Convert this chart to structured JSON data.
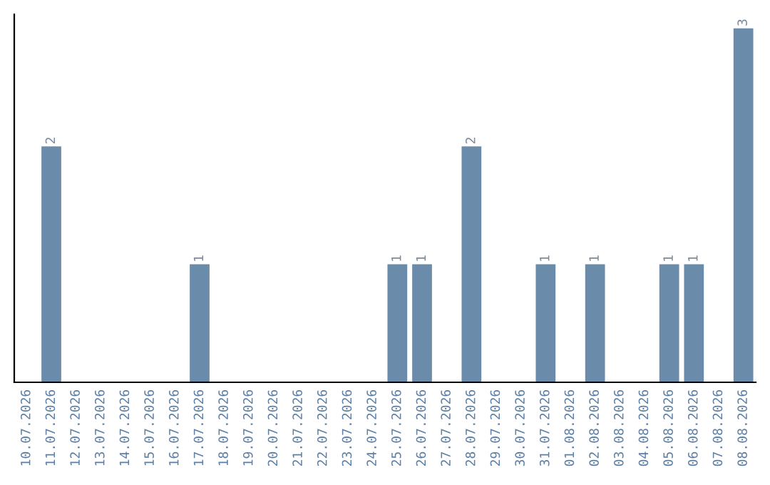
{
  "chart_data": {
    "type": "bar",
    "categories": [
      "10.07.2026",
      "11.07.2026",
      "12.07.2026",
      "13.07.2026",
      "14.07.2026",
      "15.07.2026",
      "16.07.2026",
      "17.07.2026",
      "18.07.2026",
      "19.07.2026",
      "20.07.2026",
      "21.07.2026",
      "22.07.2026",
      "23.07.2026",
      "24.07.2026",
      "25.07.2026",
      "26.07.2026",
      "27.07.2026",
      "28.07.2026",
      "29.07.2026",
      "30.07.2026",
      "31.07.2026",
      "01.08.2026",
      "02.08.2026",
      "03.08.2026",
      "04.08.2026",
      "05.08.2026",
      "06.08.2026",
      "07.08.2026",
      "08.08.2026"
    ],
    "values": [
      0,
      2,
      0,
      0,
      0,
      0,
      0,
      1,
      0,
      0,
      0,
      0,
      0,
      0,
      0,
      1,
      1,
      0,
      2,
      0,
      0,
      1,
      0,
      1,
      0,
      0,
      1,
      1,
      0,
      3
    ],
    "value_labels": [
      null,
      "2",
      null,
      null,
      null,
      null,
      null,
      "1",
      null,
      null,
      null,
      null,
      null,
      null,
      null,
      "1",
      "1",
      null,
      "2",
      null,
      null,
      "1",
      null,
      "1",
      null,
      null,
      "1",
      "1",
      null,
      "3"
    ],
    "color": "#6a8caa",
    "ylim": [
      0,
      3.12
    ],
    "tick_labels": "x",
    "grid": false
  }
}
